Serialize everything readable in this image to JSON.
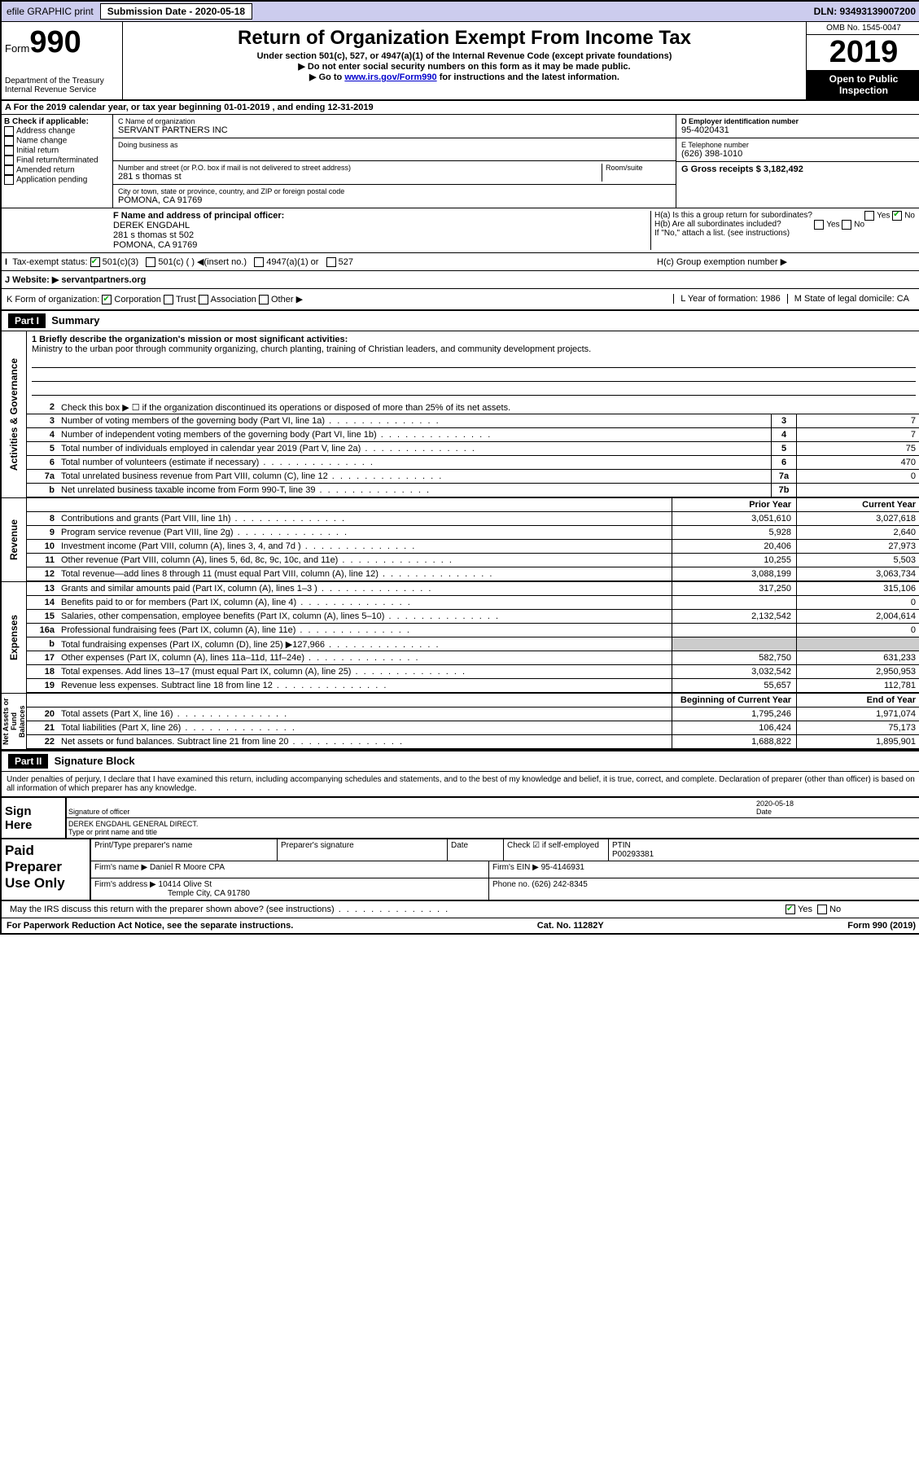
{
  "topbar": {
    "efile": "efile GRAPHIC print",
    "sublabel": "Submission Date - 2020-05-18",
    "dln": "DLN: 93493139007200"
  },
  "header": {
    "form": "Form",
    "num": "990",
    "dept": "Department of the Treasury Internal Revenue Service",
    "title": "Return of Organization Exempt From Income Tax",
    "sub": "Under section 501(c), 527, or 4947(a)(1) of the Internal Revenue Code (except private foundations)",
    "note1": "▶ Do not enter social security numbers on this form as it may be made public.",
    "note2_pre": "▶ Go to ",
    "note2_link": "www.irs.gov/Form990",
    "note2_post": " for instructions and the latest information.",
    "omb": "OMB No. 1545-0047",
    "year": "2019",
    "insp1": "Open to Public",
    "insp2": "Inspection"
  },
  "A": {
    "text": "A For the 2019 calendar year, or tax year beginning 01-01-2019   , and ending 12-31-2019"
  },
  "B": {
    "title": "B Check if applicable:",
    "opts": [
      "Address change",
      "Name change",
      "Initial return",
      "Final return/terminated",
      "Amended return",
      "Application pending"
    ]
  },
  "C": {
    "name_lbl": "C Name of organization",
    "name": "SERVANT PARTNERS INC",
    "dba_lbl": "Doing business as",
    "street_lbl": "Number and street (or P.O. box if mail is not delivered to street address)",
    "room_lbl": "Room/suite",
    "street": "281 s thomas st",
    "city_lbl": "City or town, state or province, country, and ZIP or foreign postal code",
    "city": "POMONA, CA  91769"
  },
  "D": {
    "lbl": "D Employer identification number",
    "val": "95-4020431"
  },
  "E": {
    "lbl": "E Telephone number",
    "val": "(626) 398-1010"
  },
  "G": {
    "lbl": "G Gross receipts $ 3,182,492"
  },
  "F": {
    "lbl": "F  Name and address of principal officer:",
    "name": "DEREK ENGDAHL",
    "addr1": "281 s thomas st 502",
    "addr2": "POMONA, CA  91769"
  },
  "H": {
    "a": "H(a)  Is this a group return for subordinates?",
    "b": "H(b)  Are all subordinates included?",
    "bnote": "If \"No,\" attach a list. (see instructions)",
    "c": "H(c)  Group exemption number ▶",
    "yes": "Yes",
    "no": "No"
  },
  "I": {
    "lbl": "Tax-exempt status:",
    "o1": "501(c)(3)",
    "o2": "501(c) (  ) ◀(insert no.)",
    "o3": "4947(a)(1) or",
    "o4": "527"
  },
  "J": {
    "lbl": "J   Website: ▶",
    "val": "servantpartners.org"
  },
  "K": {
    "lbl": "K Form of organization:",
    "o1": "Corporation",
    "o2": "Trust",
    "o3": "Association",
    "o4": "Other ▶",
    "L": "L Year of formation: 1986",
    "M": "M State of legal domicile: CA"
  },
  "part1": {
    "hdr": "Part I",
    "title": "Summary",
    "l1_lbl": "1  Briefly describe the organization's mission or most significant activities:",
    "l1_txt": "Ministry to the urban poor through community organizing, church planting, training of Christian leaders, and community development projects.",
    "l2": "Check this box ▶ ☐  if the organization discontinued its operations or disposed of more than 25% of its net assets.",
    "rows_ag": [
      {
        "n": "3",
        "t": "Number of voting members of the governing body (Part VI, line 1a)",
        "b": "3",
        "v": "7"
      },
      {
        "n": "4",
        "t": "Number of independent voting members of the governing body (Part VI, line 1b)",
        "b": "4",
        "v": "7"
      },
      {
        "n": "5",
        "t": "Total number of individuals employed in calendar year 2019 (Part V, line 2a)",
        "b": "5",
        "v": "75"
      },
      {
        "n": "6",
        "t": "Total number of volunteers (estimate if necessary)",
        "b": "6",
        "v": "470"
      },
      {
        "n": "7a",
        "t": "Total unrelated business revenue from Part VIII, column (C), line 12",
        "b": "7a",
        "v": "0"
      },
      {
        "n": "b",
        "t": "Net unrelated business taxable income from Form 990-T, line 39",
        "b": "7b",
        "v": ""
      }
    ],
    "col_prior": "Prior Year",
    "col_curr": "Current Year",
    "rows_rev": [
      {
        "n": "8",
        "t": "Contributions and grants (Part VIII, line 1h)",
        "p": "3,051,610",
        "c": "3,027,618"
      },
      {
        "n": "9",
        "t": "Program service revenue (Part VIII, line 2g)",
        "p": "5,928",
        "c": "2,640"
      },
      {
        "n": "10",
        "t": "Investment income (Part VIII, column (A), lines 3, 4, and 7d )",
        "p": "20,406",
        "c": "27,973"
      },
      {
        "n": "11",
        "t": "Other revenue (Part VIII, column (A), lines 5, 6d, 8c, 9c, 10c, and 11e)",
        "p": "10,255",
        "c": "5,503"
      },
      {
        "n": "12",
        "t": "Total revenue—add lines 8 through 11 (must equal Part VIII, column (A), line 12)",
        "p": "3,088,199",
        "c": "3,063,734"
      }
    ],
    "rows_exp": [
      {
        "n": "13",
        "t": "Grants and similar amounts paid (Part IX, column (A), lines 1–3 )",
        "p": "317,250",
        "c": "315,106"
      },
      {
        "n": "14",
        "t": "Benefits paid to or for members (Part IX, column (A), line 4)",
        "p": "",
        "c": "0"
      },
      {
        "n": "15",
        "t": "Salaries, other compensation, employee benefits (Part IX, column (A), lines 5–10)",
        "p": "2,132,542",
        "c": "2,004,614"
      },
      {
        "n": "16a",
        "t": "Professional fundraising fees (Part IX, column (A), line 11e)",
        "p": "",
        "c": "0"
      },
      {
        "n": "b",
        "t": "Total fundraising expenses (Part IX, column (D), line 25) ▶127,966",
        "p": "shade",
        "c": "shade"
      },
      {
        "n": "17",
        "t": "Other expenses (Part IX, column (A), lines 11a–11d, 11f–24e)",
        "p": "582,750",
        "c": "631,233"
      },
      {
        "n": "18",
        "t": "Total expenses. Add lines 13–17 (must equal Part IX, column (A), line 25)",
        "p": "3,032,542",
        "c": "2,950,953"
      },
      {
        "n": "19",
        "t": "Revenue less expenses. Subtract line 18 from line 12",
        "p": "55,657",
        "c": "112,781"
      }
    ],
    "col_beg": "Beginning of Current Year",
    "col_end": "End of Year",
    "rows_net": [
      {
        "n": "20",
        "t": "Total assets (Part X, line 16)",
        "p": "1,795,246",
        "c": "1,971,074"
      },
      {
        "n": "21",
        "t": "Total liabilities (Part X, line 26)",
        "p": "106,424",
        "c": "75,173"
      },
      {
        "n": "22",
        "t": "Net assets or fund balances. Subtract line 21 from line 20",
        "p": "1,688,822",
        "c": "1,895,901"
      }
    ],
    "side_ag": "Activities & Governance",
    "side_rev": "Revenue",
    "side_exp": "Expenses",
    "side_net": "Net Assets or Fund Balances"
  },
  "part2": {
    "hdr": "Part II",
    "title": "Signature Block",
    "decl": "Under penalties of perjury, I declare that I have examined this return, including accompanying schedules and statements, and to the best of my knowledge and belief, it is true, correct, and complete. Declaration of preparer (other than officer) is based on all information of which preparer has any knowledge.",
    "sign": "Sign Here",
    "sig_lbl": "Signature of officer",
    "date_lbl": "Date",
    "date": "2020-05-18",
    "name": "DEREK ENGDAHL  GENERAL DIRECT.",
    "name_lbl": "Type or print name and title",
    "paid": "Paid Preparer Use Only",
    "p_name_lbl": "Print/Type preparer's name",
    "p_sig_lbl": "Preparer's signature",
    "p_date_lbl": "Date",
    "p_chk": "Check ☑ if self-employed",
    "ptin_lbl": "PTIN",
    "ptin": "P00293381",
    "firm_lbl": "Firm's name    ▶",
    "firm": "Daniel R Moore CPA",
    "ein_lbl": "Firm's EIN ▶",
    "ein": "95-4146931",
    "addr_lbl": "Firm's address ▶",
    "addr1": "10414 Olive St",
    "addr2": "Temple City, CA  91780",
    "phone_lbl": "Phone no.",
    "phone": "(626) 242-8345",
    "irs_q": "May the IRS discuss this return with the preparer shown above? (see instructions)",
    "yes": "Yes",
    "no": "No"
  },
  "footer": {
    "l": "For Paperwork Reduction Act Notice, see the separate instructions.",
    "c": "Cat. No. 11282Y",
    "r": "Form 990 (2019)"
  }
}
